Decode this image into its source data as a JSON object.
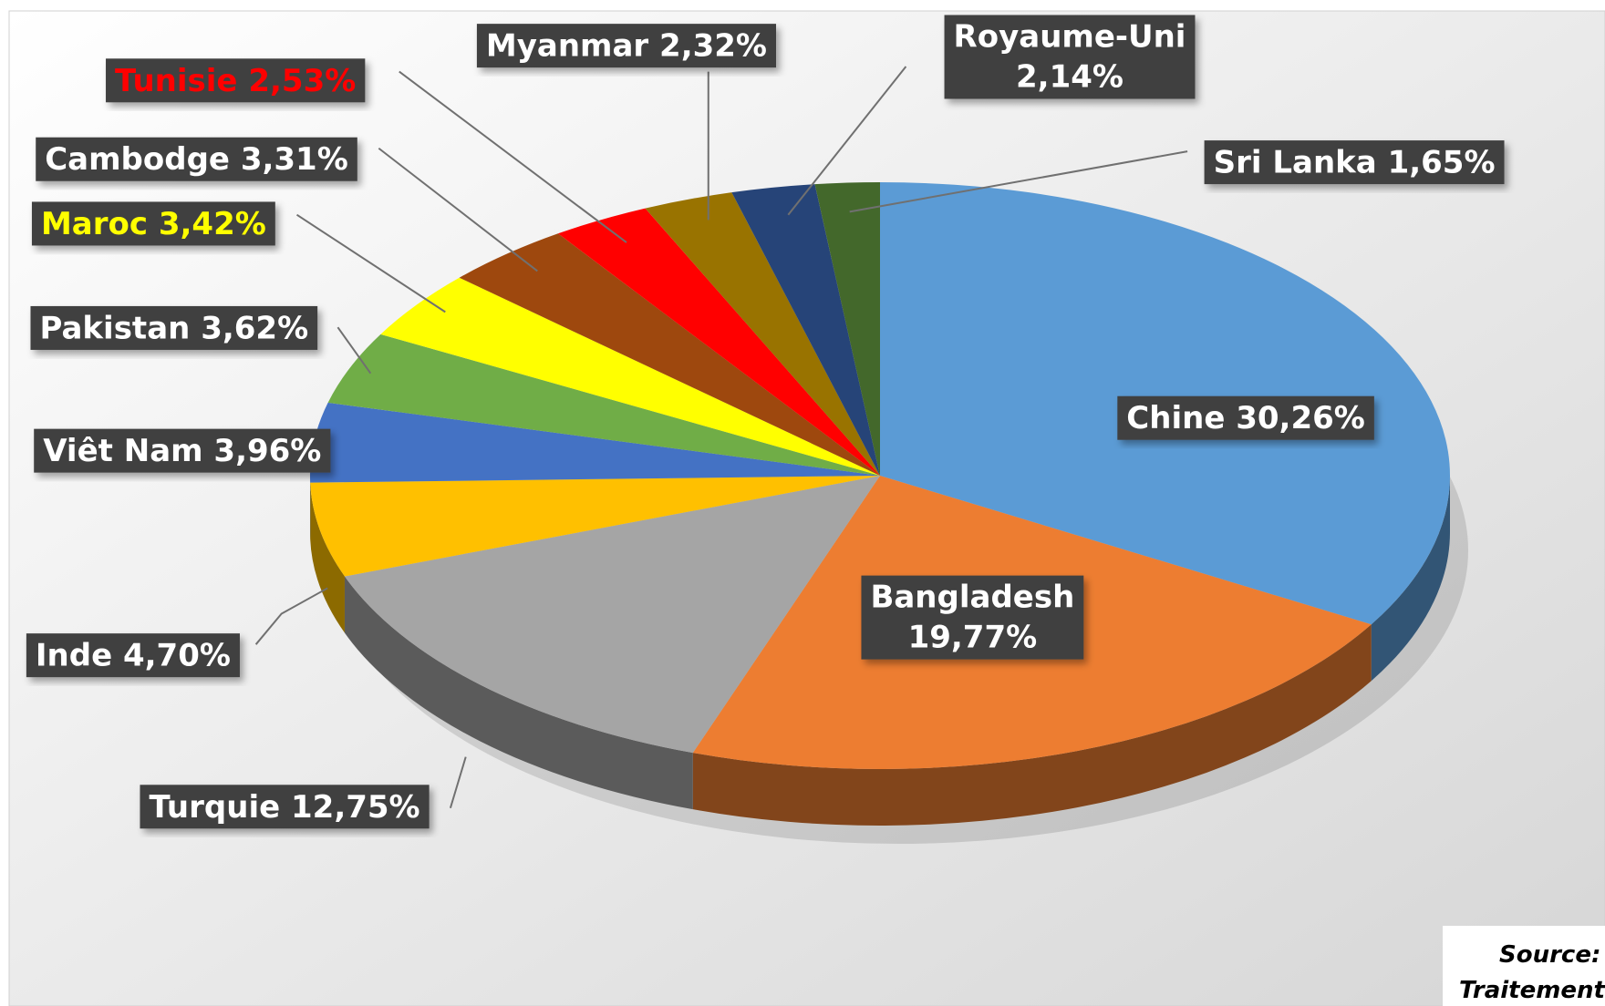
{
  "chart_data": {
    "type": "pie3d",
    "categories": [
      "Chine",
      "Bangladesh",
      "Turquie",
      "Inde",
      "Viêt Nam",
      "Pakistan",
      "Maroc",
      "Cambodge",
      "Tunisie",
      "Myanmar",
      "Royaume-Uni",
      "Sri Lanka"
    ],
    "values": [
      30.26,
      19.77,
      12.75,
      4.7,
      3.96,
      3.62,
      3.42,
      3.31,
      2.53,
      2.32,
      2.14,
      1.65
    ],
    "value_labels": [
      "30,26%",
      "19,77%",
      "12,75%",
      "4,70%",
      "3,96%",
      "3,62%",
      "3,42%",
      "3,31%",
      "2,53%",
      "2,32%",
      "2,14%",
      "1,65%"
    ],
    "colors": [
      "#5b9bd5",
      "#ed7d31",
      "#a5a5a5",
      "#ffc000",
      "#4472c4",
      "#70ad47",
      "#ffff00",
      "#9e480e",
      "#ff0000",
      "#997300",
      "#264478",
      "#43682b"
    ],
    "label_text_colors": [
      "#ffffff",
      "#ffffff",
      "#ffffff",
      "#ffffff",
      "#ffffff",
      "#ffffff",
      "#ffff00",
      "#ffffff",
      "#ff0000",
      "#ffffff",
      "#ffffff",
      "#ffffff"
    ],
    "source": "Source: E",
    "processing": "Traitement:"
  }
}
